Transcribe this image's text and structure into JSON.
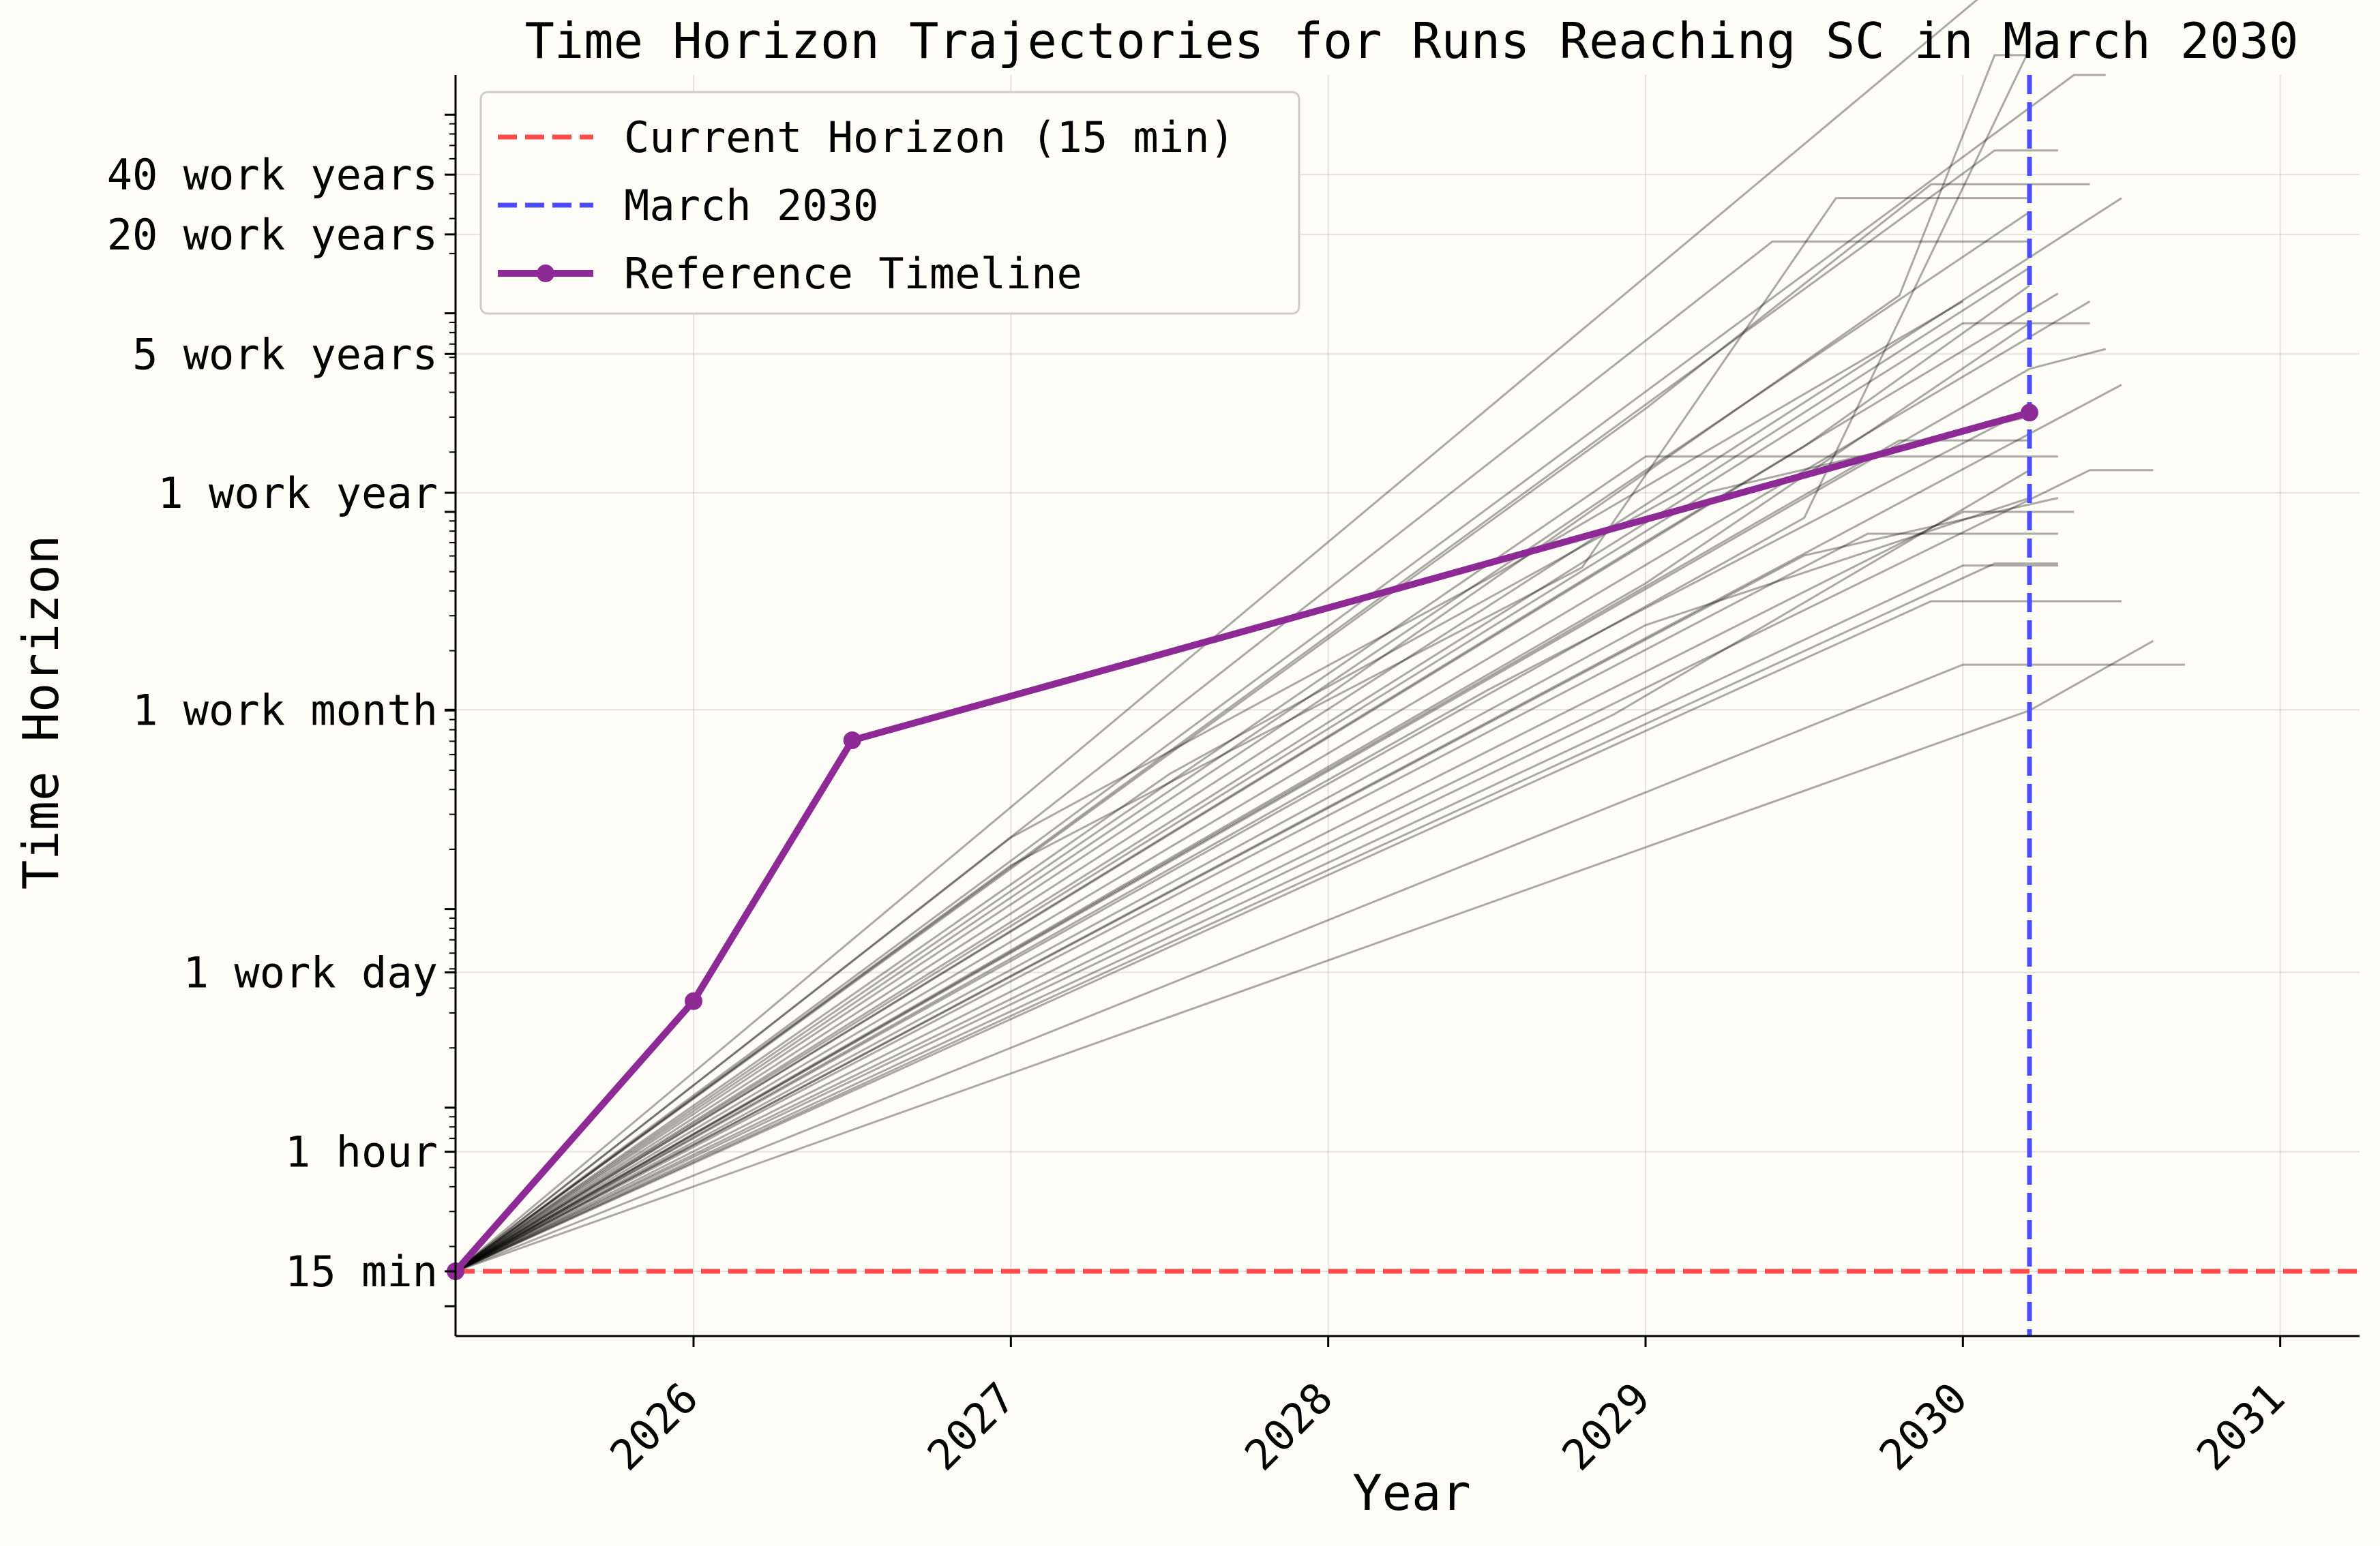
{
  "chart_data": {
    "type": "line",
    "title": "Time Horizon Trajectories for Runs Reaching SC in March 2030",
    "xlabel": "Year",
    "ylabel": "Time Horizon",
    "xlim": [
      2025.25,
      2031.25
    ],
    "ylim_log10_minutes": [
      0.85,
      7.2
    ],
    "y_scale": "log",
    "grid": true,
    "legend_position": "top-left",
    "x_ticks": [
      {
        "value": 2026,
        "label": "2026"
      },
      {
        "value": 2027,
        "label": "2027"
      },
      {
        "value": 2028,
        "label": "2028"
      },
      {
        "value": 2029,
        "label": "2029"
      },
      {
        "value": 2030,
        "label": "2030"
      },
      {
        "value": 2031,
        "label": "2031"
      }
    ],
    "y_ticks": [
      {
        "minutes": 15,
        "label": "15 min"
      },
      {
        "minutes": 60,
        "label": "1 hour"
      },
      {
        "minutes": 480,
        "label": "1 work day"
      },
      {
        "minutes": 10080,
        "label": "1 work month"
      },
      {
        "minutes": 124800,
        "label": "1 work year"
      },
      {
        "minutes": 624000,
        "label": "5 work years"
      },
      {
        "minutes": 2496000,
        "label": "20 work years"
      },
      {
        "minutes": 4992000,
        "label": "40 work years"
      }
    ],
    "legend": [
      {
        "label": "Current Horizon (15 min)",
        "style": "dashed",
        "color": "#ff4c4c"
      },
      {
        "label": "March 2030",
        "style": "dashed",
        "color": "#4c4cff"
      },
      {
        "label": "Reference Timeline",
        "style": "solid-marker",
        "color": "#8e2a96"
      }
    ],
    "reference_lines": {
      "current_horizon_minutes": 15,
      "march_2030_year": 2030.21
    },
    "reference_timeline": {
      "name": "Reference Timeline",
      "x": [
        2025.25,
        2026.0,
        2026.5,
        2030.21
      ],
      "y_minutes": [
        15,
        344,
        7079,
        316228
      ]
    },
    "trajectories": [
      [
        [
          2025.25,
          15
        ],
        [
          2027.0,
          2290
        ],
        [
          2028.5,
          45700
        ],
        [
          2030.0,
          1148000
        ]
      ],
      [
        [
          2025.25,
          15
        ],
        [
          2027.0,
          1660
        ],
        [
          2028.8,
          52500
        ],
        [
          2029.6,
          3802000
        ],
        [
          2030.21,
          3802000
        ]
      ],
      [
        [
          2025.25,
          15
        ],
        [
          2027.5,
          4790
        ],
        [
          2029.1,
          123000
        ],
        [
          2030.21,
          1698000
        ]
      ],
      [
        [
          2025.25,
          15
        ],
        [
          2028.0,
          12000
        ],
        [
          2029.8,
          1230000
        ],
        [
          2030.1,
          19953000
        ],
        [
          2030.21,
          19953000
        ]
      ],
      [
        [
          2025.25,
          15
        ],
        [
          2029.2,
          126000
        ],
        [
          2030.21,
          302000
        ]
      ],
      [
        [
          2025.25,
          15
        ],
        [
          2029.5,
          213800
        ],
        [
          2030.21,
          1380000
        ]
      ],
      [
        [
          2025.25,
          15
        ],
        [
          2030.21,
          3236000
        ]
      ],
      [
        [
          2025.25,
          15
        ],
        [
          2028.5,
          12600
        ],
        [
          2030.21,
          331000
        ]
      ],
      [
        [
          2025.25,
          15
        ],
        [
          2029.0,
          26900
        ],
        [
          2030.21,
          117500
        ]
      ],
      [
        [
          2025.25,
          15
        ],
        [
          2030.4,
          1148000
        ]
      ],
      [
        [
          2025.25,
          15
        ],
        [
          2030.5,
          3802000
        ]
      ],
      [
        [
          2025.25,
          15
        ],
        [
          2029.0,
          43650
        ],
        [
          2030.21,
          891000
        ]
      ],
      [
        [
          2025.25,
          15
        ],
        [
          2029.5,
          60300
        ],
        [
          2030.3,
          117500
        ]
      ],
      [
        [
          2025.25,
          15
        ],
        [
          2029.0,
          70800
        ],
        [
          2030.3,
          1259000
        ]
      ],
      [
        [
          2025.25,
          15
        ],
        [
          2030.21,
          10000
        ],
        [
          2030.6,
          22400
        ]
      ],
      [
        [
          2025.25,
          15
        ],
        [
          2030.5,
          436500
        ]
      ],
      [
        [
          2025.25,
          15
        ],
        [
          2030.1,
          55000
        ],
        [
          2030.3,
          55000
        ]
      ],
      [
        [
          2025.25,
          15
        ],
        [
          2029.5,
          93300
        ],
        [
          2030.21,
          21380000
        ]
      ],
      [
        [
          2025.25,
          15
        ],
        [
          2030.0,
          891000
        ],
        [
          2030.4,
          891000
        ]
      ],
      [
        [
          2025.25,
          15
        ],
        [
          2028.9,
          9550
        ],
        [
          2030.21,
          162200
        ]
      ],
      [
        [
          2025.25,
          15
        ],
        [
          2030.4,
          162200
        ],
        [
          2030.6,
          162200
        ]
      ],
      [
        [
          2025.25,
          15
        ],
        [
          2029.8,
          229000
        ],
        [
          2030.21,
          229000
        ]
      ],
      [
        [
          2025.25,
          15
        ],
        [
          2030.0,
          53700
        ],
        [
          2030.3,
          53700
        ]
      ],
      [
        [
          2025.25,
          15
        ],
        [
          2029.7,
          77600
        ],
        [
          2030.3,
          77600
        ]
      ],
      [
        [
          2025.25,
          15
        ],
        [
          2030.0,
          100000
        ],
        [
          2030.35,
          100000
        ]
      ],
      [
        [
          2025.25,
          15
        ],
        [
          2029.9,
          35500
        ],
        [
          2030.5,
          35500
        ]
      ],
      [
        [
          2025.25,
          15
        ],
        [
          2030.0,
          17000
        ],
        [
          2030.7,
          17000
        ]
      ],
      [
        [
          2025.25,
          15
        ],
        [
          2029.0,
          190000
        ],
        [
          2030.3,
          190000
        ]
      ],
      [
        [
          2025.25,
          15
        ],
        [
          2029.4,
          2300000
        ],
        [
          2030.21,
          2300000
        ]
      ],
      [
        [
          2025.25,
          15
        ],
        [
          2030.1,
          6607000
        ],
        [
          2030.3,
          6607000
        ]
      ],
      [
        [
          2025.25,
          15
        ],
        [
          2029.0,
          331000
        ],
        [
          2029.9,
          4466000
        ],
        [
          2030.4,
          4466000
        ]
      ],
      [
        [
          2025.25,
          15
        ],
        [
          2030.21,
          525000
        ],
        [
          2030.45,
          660700
        ]
      ],
      [
        [
          2025.25,
          15
        ],
        [
          2030.21,
          63100000
        ]
      ],
      [
        [
          2025.25,
          15
        ],
        [
          2030.35,
          15849000
        ],
        [
          2030.45,
          15849000
        ]
      ]
    ]
  }
}
